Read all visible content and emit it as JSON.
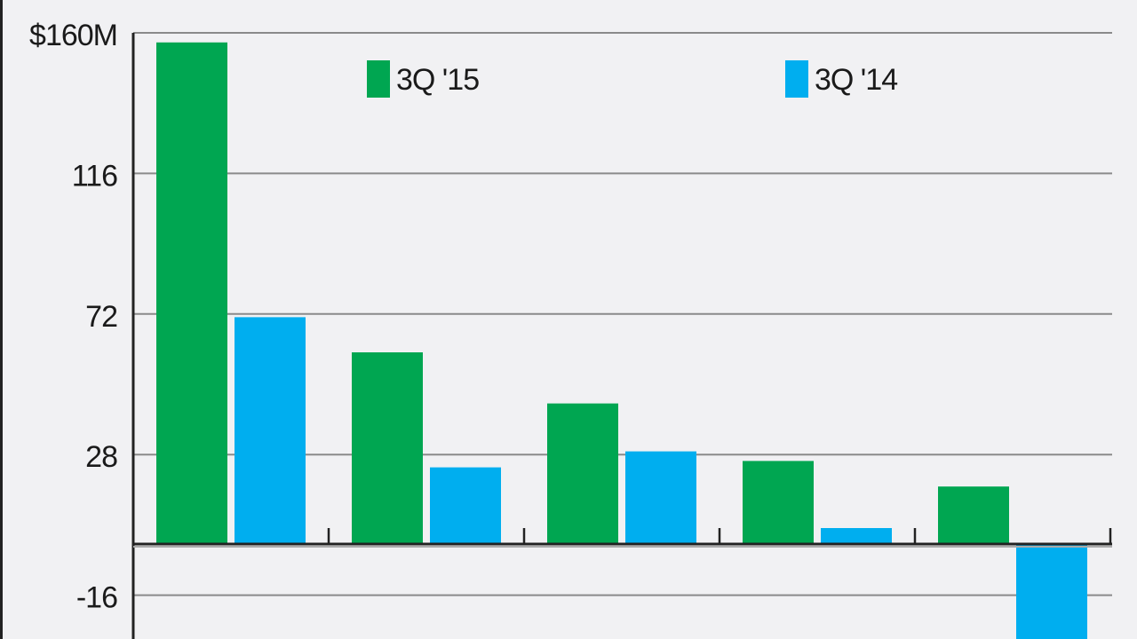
{
  "chart_data": {
    "type": "bar",
    "title": "",
    "xlabel": "",
    "ylabel": "",
    "categories": [
      "",
      "",
      "",
      "",
      ""
    ],
    "series": [
      {
        "name": "3Q '15",
        "color": "#00a651",
        "values": [
          157,
          60,
          44,
          26,
          18
        ]
      },
      {
        "name": "3Q '14",
        "color": "#00aeef",
        "values": [
          71,
          24,
          29,
          5,
          -35
        ]
      }
    ],
    "ylim": [
      -30,
      160
    ],
    "yticks": [
      160,
      116,
      72,
      28,
      -16
    ],
    "ytick_labels": [
      "$160M",
      "116",
      "72",
      "28",
      "-16"
    ],
    "grid": true,
    "legend": "top"
  }
}
